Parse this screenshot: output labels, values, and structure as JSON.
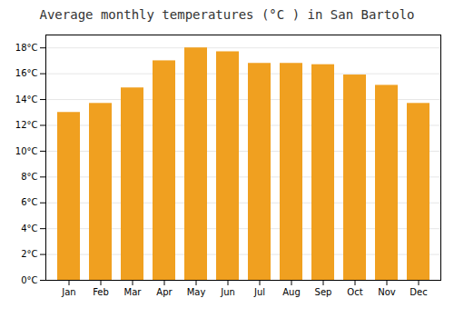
{
  "chart_data": {
    "type": "bar",
    "title": "Average monthly temperatures (°C ) in San Bartolo",
    "categories": [
      "Jan",
      "Feb",
      "Mar",
      "Apr",
      "May",
      "Jun",
      "Jul",
      "Aug",
      "Sep",
      "Oct",
      "Nov",
      "Dec"
    ],
    "values": [
      13.0,
      13.7,
      14.9,
      17.0,
      18.0,
      17.7,
      16.8,
      16.8,
      16.7,
      15.9,
      15.1,
      13.7
    ],
    "color": "#F0A020",
    "ylim": [
      0,
      19
    ],
    "yticks": [
      {
        "value": 0,
        "label": "0°C"
      },
      {
        "value": 2,
        "label": "2°C"
      },
      {
        "value": 4,
        "label": "4°C"
      },
      {
        "value": 6,
        "label": "6°C"
      },
      {
        "value": 8,
        "label": "8°C"
      },
      {
        "value": 10,
        "label": "10°C"
      },
      {
        "value": 12,
        "label": "12°C"
      },
      {
        "value": 14,
        "label": "14°C"
      },
      {
        "value": 16,
        "label": "16°C"
      },
      {
        "value": 18,
        "label": "18°C"
      }
    ],
    "grid": true
  }
}
